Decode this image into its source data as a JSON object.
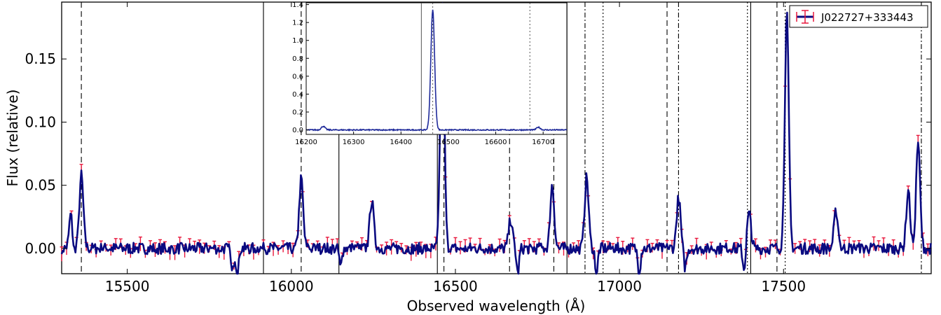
{
  "chart_data": [
    {
      "type": "line",
      "xlabel": "Observed wavelength (Å)",
      "ylabel": "Flux (relative)",
      "xlim": [
        15300,
        17950
      ],
      "ylim": [
        -0.02,
        0.195
      ],
      "xticks": [
        15500,
        16000,
        16500,
        17000,
        17500
      ],
      "xtick_labels": [
        "15500",
        "16000",
        "16500",
        "17000",
        "17500"
      ],
      "yticks": [
        0.0,
        0.05,
        0.1,
        0.15
      ],
      "ytick_labels": [
        "0.00",
        "0.05",
        "0.10",
        "0.15"
      ],
      "legend": {
        "position": "top-right",
        "label": "J022727+333443"
      },
      "colors": {
        "line": "#0a0a80",
        "errorbars": "#e8173c"
      },
      "series": [
        {
          "name": "J022727+333443",
          "peaks": [
            {
              "x": 15330,
              "y": 0.033
            },
            {
              "x": 15360,
              "y": 0.058
            },
            {
              "x": 16030,
              "y": 0.055
            },
            {
              "x": 16245,
              "y": 0.038
            },
            {
              "x": 16460,
              "y": 0.2
            },
            {
              "x": 16668,
              "y": 0.022
            },
            {
              "x": 16795,
              "y": 0.05
            },
            {
              "x": 16900,
              "y": 0.056
            },
            {
              "x": 17180,
              "y": 0.04
            },
            {
              "x": 17395,
              "y": 0.028
            },
            {
              "x": 17510,
              "y": 0.185
            },
            {
              "x": 17660,
              "y": 0.03
            },
            {
              "x": 17880,
              "y": 0.045
            },
            {
              "x": 17910,
              "y": 0.085
            }
          ],
          "dips": [
            {
              "x": 15335,
              "y": -0.02
            },
            {
              "x": 15820,
              "y": -0.02
            },
            {
              "x": 15835,
              "y": -0.02
            },
            {
              "x": 16150,
              "y": -0.015
            },
            {
              "x": 16690,
              "y": -0.02
            },
            {
              "x": 16930,
              "y": -0.02
            },
            {
              "x": 17060,
              "y": -0.02
            },
            {
              "x": 17200,
              "y": -0.015
            },
            {
              "x": 17380,
              "y": -0.018
            }
          ]
        }
      ],
      "vlines": [
        {
          "x": 15360,
          "style": "dashed"
        },
        {
          "x": 15915,
          "style": "solid"
        },
        {
          "x": 16030,
          "style": "dashed"
        },
        {
          "x": 16145,
          "style": "solid"
        },
        {
          "x": 16445,
          "style": "solid"
        },
        {
          "x": 16465,
          "style": "dashed"
        },
        {
          "x": 16665,
          "style": "dashed"
        },
        {
          "x": 16800,
          "style": "dashed"
        },
        {
          "x": 16840,
          "style": "solid"
        },
        {
          "x": 16895,
          "style": "dashdot"
        },
        {
          "x": 16950,
          "style": "dotted"
        },
        {
          "x": 17145,
          "style": "dashed"
        },
        {
          "x": 17180,
          "style": "dashdot"
        },
        {
          "x": 17390,
          "style": "dotted"
        },
        {
          "x": 17400,
          "style": "solid"
        },
        {
          "x": 17480,
          "style": "dashed"
        },
        {
          "x": 17505,
          "style": "dotted"
        },
        {
          "x": 17920,
          "style": "dashdot"
        }
      ]
    },
    {
      "type": "line",
      "inset": true,
      "xlim": [
        16200,
        16750
      ],
      "ylim": [
        -0.05,
        1.42
      ],
      "xticks": [
        16200,
        16300,
        16400,
        16500,
        16600,
        16700
      ],
      "xtick_labels": [
        "16200",
        "16300",
        "16400",
        "16500",
        "16600",
        "16700"
      ],
      "yticks": [
        0.0,
        0.2,
        0.4,
        0.6,
        0.8,
        1.0,
        1.2,
        1.4
      ],
      "ytick_labels": [
        "0.0",
        "0.2",
        "0.4",
        "0.6",
        "0.8",
        "1.0",
        "1.2",
        "1.4"
      ],
      "series": [
        {
          "peaks": [
            {
              "x": 16236,
              "y": 0.04
            },
            {
              "x": 16467,
              "y": 1.34
            },
            {
              "x": 16690,
              "y": 0.03
            }
          ]
        }
      ],
      "vlines": [
        {
          "x": 16443,
          "style": "solid"
        },
        {
          "x": 16467,
          "style": "dotted"
        },
        {
          "x": 16672,
          "style": "dotted"
        }
      ]
    }
  ]
}
